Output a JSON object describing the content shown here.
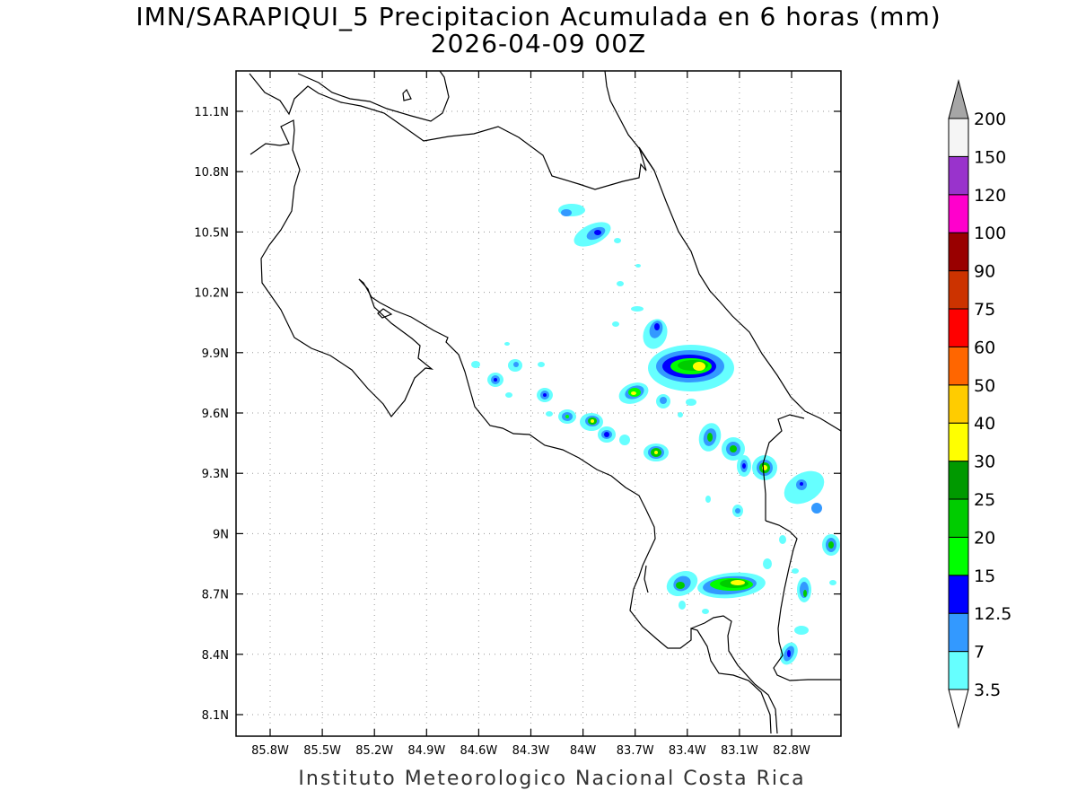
{
  "title_line1": "IMN/SARAPIQUI_5 Precipitacion Acumulada en 6 horas (mm)",
  "title_line2": "2026-04-09 00Z",
  "credit": "Instituto Meteorologico Nacional Costa Rica",
  "lat_labels": [
    "11.1N",
    "10.8N",
    "10.5N",
    "10.2N",
    "9.9N",
    "9.6N",
    "9.3N",
    "9N",
    "8.7N",
    "8.4N",
    "8.1N"
  ],
  "lon_labels": [
    "85.8W",
    "85.5W",
    "85.2W",
    "84.9W",
    "84.6W",
    "84.3W",
    "84W",
    "83.7W",
    "83.4W",
    "83.1W",
    "82.8W"
  ],
  "colorbar": {
    "labels": [
      "3.5",
      "7",
      "12.5",
      "15",
      "20",
      "25",
      "30",
      "40",
      "50",
      "60",
      "75",
      "90",
      "100",
      "120",
      "150",
      "200"
    ],
    "colors": [
      "#66ffff",
      "#3399ff",
      "#0000ff",
      "#00ff00",
      "#00cc00",
      "#009900",
      "#ffff00",
      "#ffcc00",
      "#ff6600",
      "#ff0000",
      "#cc3300",
      "#990000",
      "#ff00cc",
      "#9933cc",
      "#f5f5f5",
      "#a6a6a6"
    ],
    "over_color": "#a6a6a6",
    "under_color": "#ffffff"
  }
}
